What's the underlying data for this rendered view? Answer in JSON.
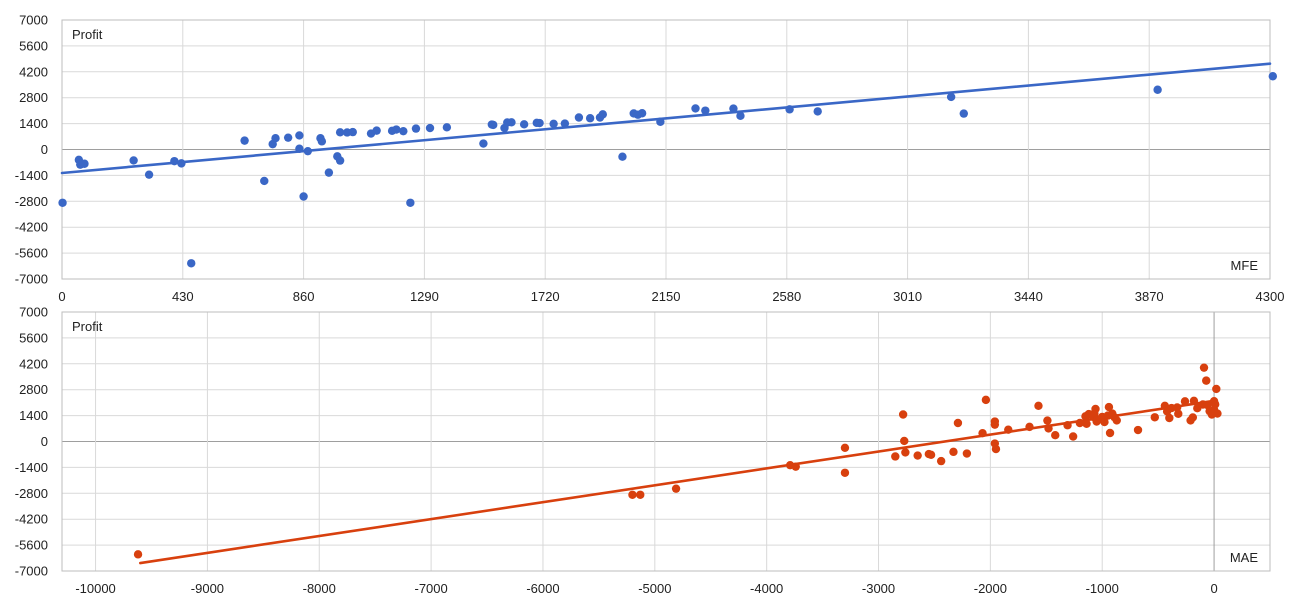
{
  "chart_data": [
    {
      "type": "scatter",
      "ylabel": "Profit",
      "xlabel": "MFE",
      "xlim": [
        0,
        4300
      ],
      "ylim": [
        -7000,
        7000
      ],
      "xticks": [
        "0",
        "430",
        "860",
        "1290",
        "1720",
        "2150",
        "2580",
        "3010",
        "3440",
        "3870",
        "4300"
      ],
      "yticks": [
        "7000",
        "5600",
        "4200",
        "2800",
        "1400",
        "0",
        "-1400",
        "-2800",
        "-4200",
        "-5600",
        "-7000"
      ],
      "grid": true,
      "color": "#3a67c6",
      "trendline": [
        [
          0,
          -1270
        ],
        [
          4300,
          4640
        ]
      ],
      "points": [
        [
          2,
          -2880
        ],
        [
          60,
          -560
        ],
        [
          65,
          -820
        ],
        [
          80,
          -770
        ],
        [
          255,
          -590
        ],
        [
          310,
          -1360
        ],
        [
          400,
          -630
        ],
        [
          425,
          -750
        ],
        [
          460,
          -6150
        ],
        [
          650,
          480
        ],
        [
          720,
          -1700
        ],
        [
          750,
          290
        ],
        [
          760,
          610
        ],
        [
          805,
          640
        ],
        [
          845,
          760
        ],
        [
          845,
          40
        ],
        [
          860,
          -2540
        ],
        [
          875,
          -90
        ],
        [
          920,
          610
        ],
        [
          925,
          440
        ],
        [
          950,
          -1250
        ],
        [
          980,
          -370
        ],
        [
          990,
          -600
        ],
        [
          990,
          930
        ],
        [
          1015,
          920
        ],
        [
          1035,
          940
        ],
        [
          1100,
          860
        ],
        [
          1120,
          1020
        ],
        [
          1175,
          1010
        ],
        [
          1190,
          1080
        ],
        [
          1215,
          990
        ],
        [
          1240,
          -2880
        ],
        [
          1260,
          1130
        ],
        [
          1310,
          1160
        ],
        [
          1370,
          1200
        ],
        [
          1500,
          320
        ],
        [
          1530,
          1350
        ],
        [
          1535,
          1330
        ],
        [
          1575,
          1160
        ],
        [
          1585,
          1460
        ],
        [
          1600,
          1470
        ],
        [
          1645,
          1360
        ],
        [
          1690,
          1440
        ],
        [
          1700,
          1430
        ],
        [
          1750,
          1390
        ],
        [
          1790,
          1400
        ],
        [
          1840,
          1730
        ],
        [
          1880,
          1690
        ],
        [
          1915,
          1730
        ],
        [
          1925,
          1900
        ],
        [
          1995,
          -390
        ],
        [
          2035,
          1950
        ],
        [
          2050,
          1880
        ],
        [
          2065,
          1960
        ],
        [
          2130,
          1500
        ],
        [
          2255,
          2220
        ],
        [
          2290,
          2100
        ],
        [
          2390,
          2210
        ],
        [
          2415,
          1820
        ],
        [
          2590,
          2170
        ],
        [
          2690,
          2060
        ],
        [
          3165,
          2840
        ],
        [
          3210,
          1940
        ],
        [
          3900,
          3230
        ],
        [
          4310,
          3960
        ]
      ]
    },
    {
      "type": "scatter",
      "ylabel": "Profit",
      "xlabel": "MAE",
      "xlim": [
        -10300,
        500
      ],
      "ylim": [
        -7000,
        7000
      ],
      "xticks": [
        "-10000",
        "-9000",
        "-8000",
        "-7000",
        "-6000",
        "-5000",
        "-4000",
        "-3000",
        "-2000",
        "-1000",
        "0"
      ],
      "yticks": [
        "7000",
        "5600",
        "4200",
        "2800",
        "1400",
        "0",
        "-1400",
        "-2800",
        "-4200",
        "-5600",
        "-7000"
      ],
      "grid": true,
      "color": "#d8400e",
      "trendline": [
        [
          -9600,
          -6570
        ],
        [
          0,
          2200
        ]
      ],
      "points": [
        [
          -9620,
          -6100
        ],
        [
          -5200,
          -2880
        ],
        [
          -5130,
          -2880
        ],
        [
          -4810,
          -2550
        ],
        [
          -3790,
          -1280
        ],
        [
          -3740,
          -1360
        ],
        [
          -3300,
          -340
        ],
        [
          -3300,
          -1690
        ],
        [
          -2850,
          -810
        ],
        [
          -2780,
          1460
        ],
        [
          -2770,
          30
        ],
        [
          -2760,
          -590
        ],
        [
          -2650,
          -760
        ],
        [
          -2550,
          -680
        ],
        [
          -2530,
          -720
        ],
        [
          -2440,
          -1060
        ],
        [
          -2330,
          -560
        ],
        [
          -2290,
          1000
        ],
        [
          -2210,
          -650
        ],
        [
          -2070,
          450
        ],
        [
          -2040,
          2250
        ],
        [
          -1960,
          1080
        ],
        [
          -1960,
          910
        ],
        [
          -1960,
          -110
        ],
        [
          -1950,
          -410
        ],
        [
          -1840,
          640
        ],
        [
          -1650,
          790
        ],
        [
          -1570,
          1930
        ],
        [
          -1490,
          1130
        ],
        [
          -1480,
          710
        ],
        [
          -1420,
          340
        ],
        [
          -1310,
          880
        ],
        [
          -1260,
          270
        ],
        [
          -1200,
          1000
        ],
        [
          -1150,
          1360
        ],
        [
          -1140,
          960
        ],
        [
          -1120,
          1480
        ],
        [
          -1080,
          1330
        ],
        [
          -1070,
          1520
        ],
        [
          -1060,
          1760
        ],
        [
          -1050,
          1080
        ],
        [
          -1040,
          1190
        ],
        [
          -1000,
          1330
        ],
        [
          -980,
          1050
        ],
        [
          -950,
          1400
        ],
        [
          -940,
          1860
        ],
        [
          -930,
          460
        ],
        [
          -910,
          1510
        ],
        [
          -890,
          1310
        ],
        [
          -870,
          1140
        ],
        [
          -680,
          620
        ],
        [
          -530,
          1310
        ],
        [
          -440,
          1930
        ],
        [
          -420,
          1630
        ],
        [
          -400,
          1270
        ],
        [
          -380,
          1810
        ],
        [
          -330,
          1840
        ],
        [
          -320,
          1500
        ],
        [
          -260,
          2170
        ],
        [
          -210,
          1140
        ],
        [
          -190,
          1300
        ],
        [
          -180,
          2200
        ],
        [
          -150,
          1800
        ],
        [
          -100,
          2000
        ],
        [
          -90,
          3990
        ],
        [
          -70,
          3290
        ],
        [
          -60,
          1970
        ],
        [
          -40,
          1640
        ],
        [
          -20,
          1460
        ],
        [
          0,
          2180
        ],
        [
          0,
          1720
        ],
        [
          10,
          2010
        ],
        [
          20,
          2840
        ],
        [
          30,
          1510
        ]
      ]
    }
  ]
}
